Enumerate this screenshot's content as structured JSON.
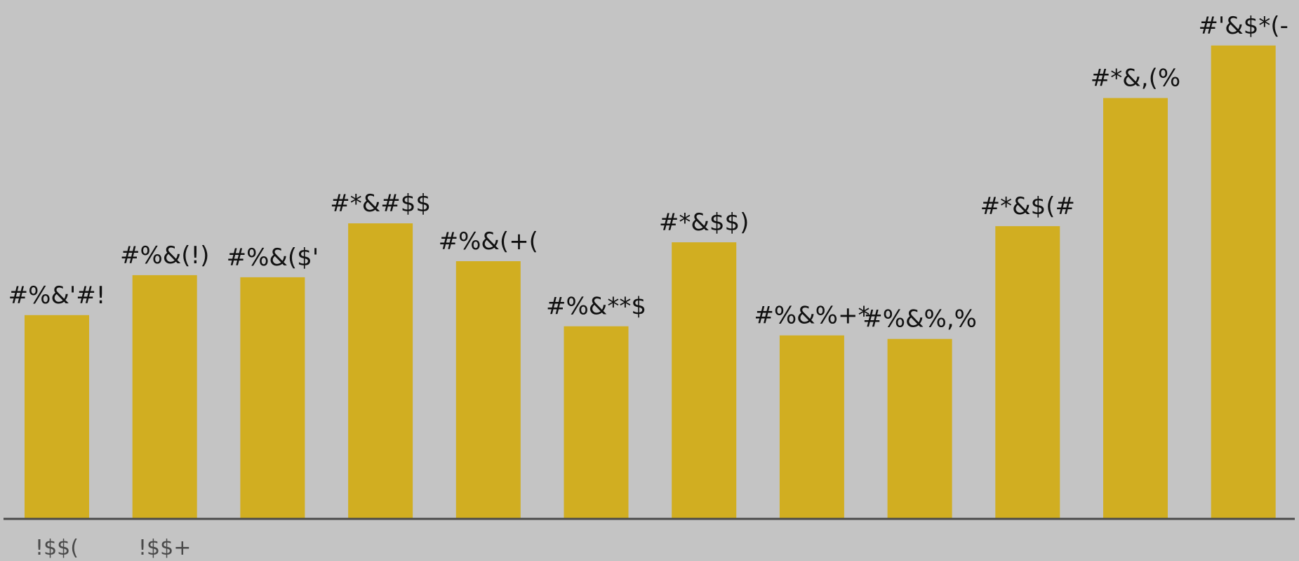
{
  "chart_data": {
    "type": "bar",
    "colors": {
      "background": "#c4c4c4",
      "bar": "#d1ae21",
      "baseline": "#4a4a4a",
      "label": "#111111",
      "tick": "#4a4a4a"
    },
    "grid": false,
    "legend": "none",
    "categories": [
      "!$$(",
      "!$$+",
      "",
      "",
      "",
      "",
      "",
      "",
      "",
      "",
      "",
      ""
    ],
    "values": [
      290,
      347,
      344,
      421,
      367,
      274,
      394,
      261,
      256,
      417,
      600,
      675
    ],
    "data_labels": [
      "#%&'#!",
      "#%&(!)",
      "#%&($'",
      "#*&#$$",
      "#%&(+(",
      "#%&**$",
      "#*&$$)",
      "#%&%+*",
      "#%&%,%",
      "#*&$(#",
      "#*&,(%",
      "#'&$*(-"
    ],
    "ylim": [
      0,
      740
    ]
  }
}
